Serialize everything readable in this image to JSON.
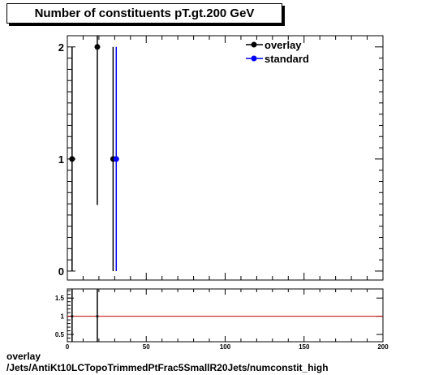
{
  "title": "Number of constituents pT.gt.200 GeV",
  "footer": {
    "line1": "overlay",
    "line2": "/Jets/AntiKt10LCTopoTrimmedPtFrac5SmallR20Jets/numconstit_high"
  },
  "colors": {
    "overlay": "#000000",
    "standard": "#0000ff",
    "ratio_line": "#c00000"
  },
  "chart_data": [
    {
      "type": "scatter",
      "title": "Number of constituents pT.gt.200 GeV",
      "xlim": [
        0,
        200
      ],
      "ylim": [
        -0.08,
        2.1
      ],
      "y_ticks": [
        0,
        1,
        2
      ],
      "x_tick_labels": [
        "0",
        "50",
        "100",
        "150",
        "200"
      ],
      "legend": {
        "placement": "top-right",
        "entries": [
          "overlay",
          "standard"
        ]
      },
      "series": [
        {
          "name": "overlay",
          "points": [
            {
              "x": 3,
              "y": 1,
              "err": 1
            },
            {
              "x": 19,
              "y": 2,
              "err": 1.41
            },
            {
              "x": 29,
              "y": 1,
              "err": 1
            }
          ]
        },
        {
          "name": "standard",
          "points": [
            {
              "x": 31,
              "y": 1,
              "err": 1
            }
          ]
        }
      ]
    },
    {
      "type": "line",
      "xlim": [
        0,
        200
      ],
      "ylim": [
        0.3,
        1.75
      ],
      "y_ticks": [
        0.5,
        1,
        1.5
      ],
      "y_tick_labels": [
        "0.5",
        "1",
        "1.5"
      ],
      "x_ticks": [
        0,
        50,
        100,
        150,
        200
      ],
      "x_tick_labels": [
        "0",
        "50",
        "100",
        "150",
        "200"
      ],
      "reference_line": 1,
      "points": [
        {
          "x": 3,
          "y": 1
        },
        {
          "x": 19,
          "y": 1
        }
      ]
    }
  ]
}
